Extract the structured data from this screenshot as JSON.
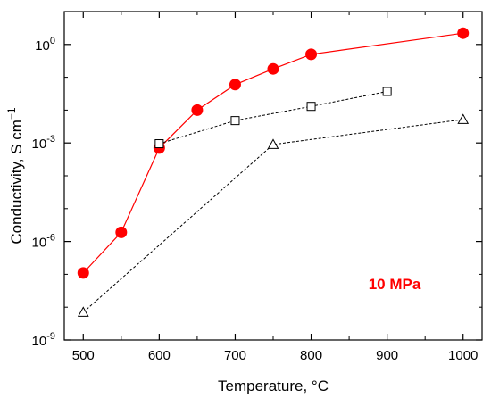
{
  "chart_data": {
    "type": "line",
    "xlabel": "Temperature, °C",
    "ylabel_main": "Conductivity, S cm",
    "ylabel_sup": "−1",
    "xlim": [
      475,
      1025
    ],
    "ylim_log10": [
      -9,
      1
    ],
    "y_scale": "log",
    "x_ticks": [
      500,
      600,
      700,
      800,
      900,
      1000
    ],
    "x_minor_ticks": [
      550,
      650,
      750,
      850,
      950
    ],
    "y_ticks": [
      {
        "exp": -9,
        "base": "10",
        "sup": "-9"
      },
      {
        "exp": -6,
        "base": "10",
        "sup": "-6"
      },
      {
        "exp": -3,
        "base": "10",
        "sup": "-3"
      },
      {
        "exp": 0,
        "base": "10",
        "sup": "0"
      }
    ],
    "annotation": "10 MPa",
    "grid": false,
    "series": [
      {
        "marker": "filled-circle",
        "color": "#ff0000",
        "line_style": "solid",
        "x": [
          500,
          550,
          600,
          650,
          700,
          750,
          800,
          1000
        ],
        "y": [
          1.1e-07,
          1.9e-06,
          0.0007,
          0.01,
          0.06,
          0.18,
          0.5,
          2.2
        ]
      },
      {
        "marker": "open-square",
        "color": "#000000",
        "line_style": "dashed",
        "x": [
          600,
          700,
          800,
          900
        ],
        "y": [
          0.00095,
          0.0048,
          0.013,
          0.037
        ]
      },
      {
        "marker": "open-triangle",
        "color": "#000000",
        "line_style": "dashed",
        "x": [
          500,
          750,
          1000
        ],
        "y": [
          7e-09,
          0.0009,
          0.0052
        ]
      }
    ]
  }
}
